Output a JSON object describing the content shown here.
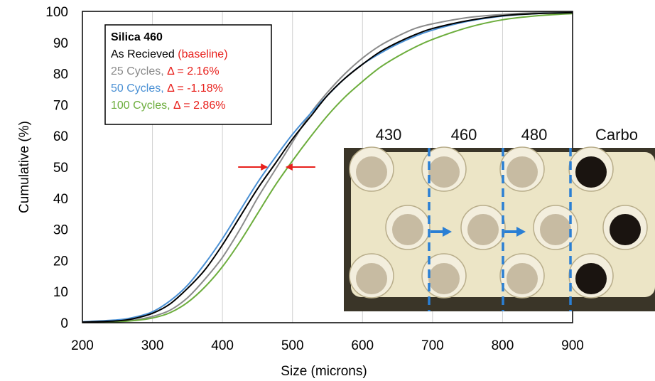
{
  "chart_data": {
    "type": "line",
    "xlabel": "Size (microns)",
    "ylabel": "Cumulative  (%)",
    "xlim": [
      200,
      900
    ],
    "ylim": [
      0,
      100
    ],
    "x_ticks": [
      "200",
      "300",
      "400",
      "500",
      "600",
      "700",
      "800",
      "900"
    ],
    "y_ticks": [
      "0",
      "10",
      "20",
      "30",
      "40",
      "50",
      "60",
      "70",
      "80",
      "90",
      "100"
    ],
    "grid": "vertical",
    "legend_position": "top-left",
    "legend": {
      "title": "Silica 460",
      "entries": [
        {
          "name": "As Recieved",
          "suffix": "(baseline)",
          "color": "#000000",
          "suffix_color": "#e8201c"
        },
        {
          "name": "25 Cycles,",
          "suffix": "Δ = 2.16%",
          "color": "#8a8a8a",
          "suffix_color": "#e8201c"
        },
        {
          "name": "50 Cycles,",
          "suffix": "Δ = -1.18%",
          "color": "#4a90d4",
          "suffix_color": "#e8201c"
        },
        {
          "name": "100 Cycles,",
          "suffix": "Δ = 2.86%",
          "color": "#6cad3c",
          "suffix_color": "#e8201c"
        }
      ]
    },
    "series": [
      {
        "name": "As Recieved",
        "color": "#000000",
        "x": [
          200,
          250,
          275,
          300,
          325,
          350,
          375,
          400,
          425,
          450,
          475,
          500,
          525,
          550,
          575,
          600,
          625,
          650,
          675,
          700,
          750,
          800,
          850,
          900
        ],
        "y": [
          0.2,
          0.6,
          1.4,
          3,
          6,
          11,
          17,
          25,
          34,
          43,
          51,
          59,
          66,
          73,
          78.5,
          83,
          87,
          90,
          92.5,
          94.5,
          97,
          98.6,
          99.3,
          99.6
        ]
      },
      {
        "name": "25 Cycles",
        "color": "#8a8a8a",
        "x": [
          200,
          250,
          275,
          300,
          325,
          350,
          375,
          400,
          425,
          450,
          475,
          500,
          525,
          550,
          575,
          600,
          625,
          650,
          675,
          700,
          750,
          800,
          850,
          900
        ],
        "y": [
          0.1,
          0.4,
          0.9,
          2,
          4,
          8,
          14,
          21,
          30,
          40,
          49,
          58,
          67,
          74,
          80,
          85,
          89,
          92,
          94.5,
          96,
          98,
          99,
          99.6,
          99.8
        ]
      },
      {
        "name": "50 Cycles",
        "color": "#4a90d4",
        "x": [
          200,
          250,
          275,
          300,
          325,
          350,
          375,
          400,
          425,
          450,
          475,
          500,
          525,
          550,
          575,
          600,
          625,
          650,
          675,
          700,
          750,
          800,
          850,
          900
        ],
        "y": [
          0.3,
          0.9,
          1.8,
          3.5,
          7,
          12,
          19,
          27,
          36,
          45,
          53,
          60.5,
          67,
          73,
          78.5,
          83,
          86.5,
          89.5,
          92,
          94,
          96.8,
          98.5,
          99.3,
          99.6
        ]
      },
      {
        "name": "100 Cycles",
        "color": "#6cad3c",
        "x": [
          200,
          250,
          275,
          300,
          325,
          350,
          375,
          400,
          425,
          450,
          475,
          500,
          525,
          550,
          575,
          600,
          625,
          650,
          675,
          700,
          750,
          800,
          850,
          900
        ],
        "y": [
          0.1,
          0.3,
          0.7,
          1.5,
          3.2,
          6.5,
          11.5,
          18,
          26,
          35,
          44,
          52,
          59.5,
          66.5,
          72.5,
          77.5,
          82,
          85.5,
          88.5,
          91,
          94.8,
          97.3,
          98.6,
          99.3
        ]
      }
    ],
    "annotation_arrows": {
      "color": "#e8201c",
      "y": 50,
      "x_left": 465,
      "x_right": 490
    },
    "inset_photo": {
      "labels": [
        "430",
        "460",
        "480",
        "Carbo"
      ],
      "divider_color": "#2a7fd4",
      "cups": [
        {
          "fill": "sand"
        },
        {
          "fill": "sand"
        },
        {
          "fill": "sand"
        },
        {
          "fill": "dark"
        }
      ]
    }
  }
}
